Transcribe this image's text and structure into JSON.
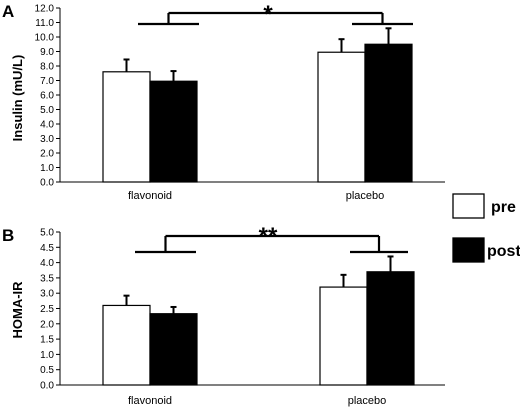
{
  "chart_data": [
    {
      "type": "bar",
      "panel_label": "A",
      "ylabel": "Insulin (mU/L)",
      "ylim": [
        0,
        12.0
      ],
      "ytick_step": 1.0,
      "ytick_decimals": 1,
      "categories": [
        "flavonoid",
        "placebo"
      ],
      "series": [
        {
          "name": "pre",
          "color": "#ffffff",
          "values": [
            7.6,
            8.95
          ],
          "errors": [
            0.85,
            0.9
          ]
        },
        {
          "name": "post",
          "color": "#000000",
          "values": [
            6.95,
            9.5
          ],
          "errors": [
            0.7,
            1.1
          ]
        }
      ],
      "significance": "*"
    },
    {
      "type": "bar",
      "panel_label": "B",
      "ylabel": "HOMA-IR",
      "ylim": [
        0,
        5.0
      ],
      "ytick_step": 0.5,
      "ytick_decimals": 1,
      "categories": [
        "flavonoid",
        "placebo"
      ],
      "series": [
        {
          "name": "pre",
          "color": "#ffffff",
          "values": [
            2.6,
            3.2
          ],
          "errors": [
            0.32,
            0.4
          ]
        },
        {
          "name": "post",
          "color": "#000000",
          "values": [
            2.33,
            3.7
          ],
          "errors": [
            0.22,
            0.5
          ]
        }
      ],
      "significance": "**"
    }
  ],
  "legend": {
    "position": "right",
    "items": [
      {
        "label": "pre",
        "color": "#ffffff"
      },
      {
        "label": "post",
        "color": "#000000"
      }
    ]
  }
}
